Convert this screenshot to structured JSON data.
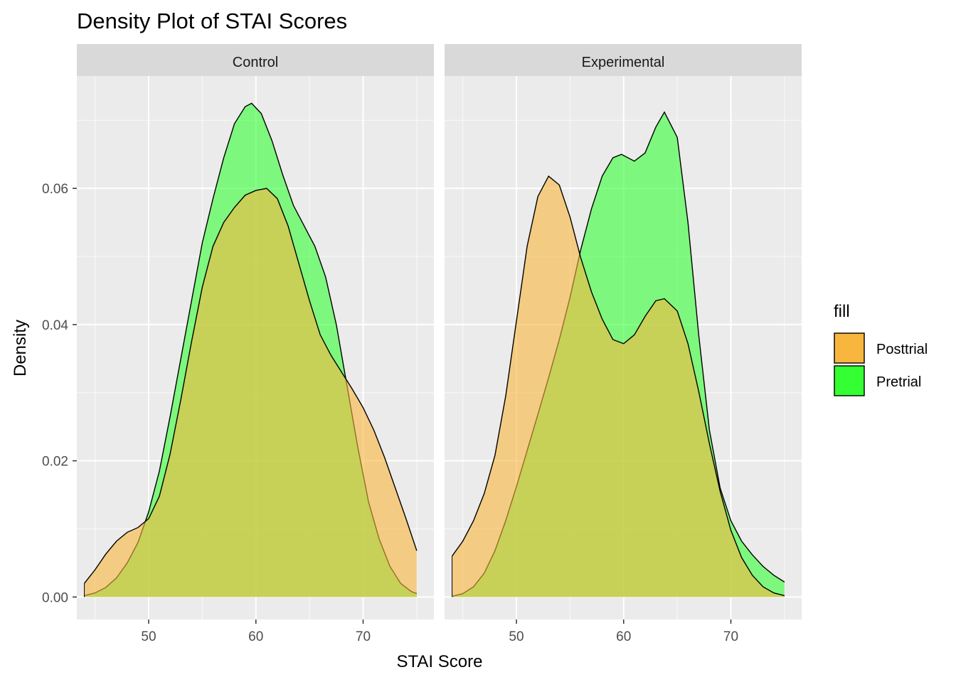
{
  "chart_data": {
    "type": "area",
    "subtype": "density",
    "title": "Density Plot of STAI Scores",
    "xlabel": "STAI Score",
    "ylabel": "Density",
    "xlim": [
      43.3,
      76.6
    ],
    "ylim": [
      -0.0033,
      0.0765
    ],
    "x_ticks": [
      50,
      60,
      70
    ],
    "x_minor_ticks": [
      45,
      55,
      65,
      75
    ],
    "y_ticks": [
      0.0,
      0.02,
      0.04,
      0.06
    ],
    "y_tick_labels": [
      "0.00",
      "0.02",
      "0.04",
      "0.06"
    ],
    "y_minor_ticks": [
      0.01,
      0.03,
      0.05,
      0.07
    ],
    "grid": true,
    "legend": {
      "title": "fill",
      "position": "right",
      "entries": [
        {
          "label": "Posttrial",
          "color": "#F8B63E"
        },
        {
          "label": "Pretrial",
          "color": "#33FF33"
        }
      ]
    },
    "panels": [
      {
        "name": "Control",
        "series": [
          {
            "name": "Pretrial",
            "color": "#33FF33",
            "points": [
              [
                44,
                0.0002
              ],
              [
                45,
                0.0006
              ],
              [
                46,
                0.0014
              ],
              [
                47,
                0.0028
              ],
              [
                48,
                0.005
              ],
              [
                49,
                0.008
              ],
              [
                50,
                0.0125
              ],
              [
                51,
                0.0185
              ],
              [
                52,
                0.0265
              ],
              [
                53,
                0.035
              ],
              [
                54,
                0.0435
              ],
              [
                55,
                0.052
              ],
              [
                56,
                0.0585
              ],
              [
                57,
                0.0645
              ],
              [
                58,
                0.0695
              ],
              [
                59,
                0.072
              ],
              [
                59.6,
                0.0725
              ],
              [
                60.5,
                0.071
              ],
              [
                61.5,
                0.067
              ],
              [
                62.5,
                0.062
              ],
              [
                63.5,
                0.0575
              ],
              [
                64.5,
                0.0545
              ],
              [
                65.5,
                0.0515
              ],
              [
                66.5,
                0.047
              ],
              [
                67.5,
                0.04
              ],
              [
                68.5,
                0.031
              ],
              [
                69.5,
                0.022
              ],
              [
                70.5,
                0.014
              ],
              [
                71.5,
                0.0085
              ],
              [
                72.5,
                0.0045
              ],
              [
                73.5,
                0.002
              ],
              [
                74.5,
                0.0008
              ],
              [
                75,
                0.0005
              ]
            ]
          },
          {
            "name": "Posttrial",
            "color": "#F8B63E",
            "points": [
              [
                44,
                0.002
              ],
              [
                45,
                0.004
              ],
              [
                46,
                0.0063
              ],
              [
                47,
                0.0082
              ],
              [
                48,
                0.0095
              ],
              [
                49,
                0.0102
              ],
              [
                50,
                0.0115
              ],
              [
                51,
                0.0148
              ],
              [
                52,
                0.021
              ],
              [
                53,
                0.029
              ],
              [
                54,
                0.0375
              ],
              [
                55,
                0.0455
              ],
              [
                56,
                0.0515
              ],
              [
                57,
                0.055
              ],
              [
                58,
                0.0572
              ],
              [
                59,
                0.059
              ],
              [
                60,
                0.0597
              ],
              [
                61,
                0.06
              ],
              [
                62,
                0.0585
              ],
              [
                63,
                0.0545
              ],
              [
                64,
                0.049
              ],
              [
                65,
                0.0435
              ],
              [
                66,
                0.0385
              ],
              [
                67,
                0.0355
              ],
              [
                68,
                0.033
              ],
              [
                69,
                0.0305
              ],
              [
                70,
                0.0278
              ],
              [
                71,
                0.0245
              ],
              [
                72,
                0.0205
              ],
              [
                73,
                0.016
              ],
              [
                74,
                0.0115
              ],
              [
                75,
                0.0068
              ]
            ]
          }
        ]
      },
      {
        "name": "Experimental",
        "series": [
          {
            "name": "Pretrial",
            "color": "#33FF33",
            "points": [
              [
                44,
                0.0001
              ],
              [
                45,
                0.0005
              ],
              [
                46,
                0.0015
              ],
              [
                47,
                0.0035
              ],
              [
                48,
                0.0068
              ],
              [
                49,
                0.0112
              ],
              [
                50,
                0.0162
              ],
              [
                51,
                0.0215
              ],
              [
                52,
                0.0268
              ],
              [
                53,
                0.0322
              ],
              [
                54,
                0.0378
              ],
              [
                55,
                0.044
              ],
              [
                56,
                0.051
              ],
              [
                57,
                0.057
              ],
              [
                58,
                0.0618
              ],
              [
                59,
                0.0645
              ],
              [
                59.8,
                0.065
              ],
              [
                61,
                0.064
              ],
              [
                62,
                0.0652
              ],
              [
                63,
                0.069
              ],
              [
                63.8,
                0.0712
              ],
              [
                65,
                0.0675
              ],
              [
                66,
                0.055
              ],
              [
                67,
                0.0385
              ],
              [
                68,
                0.0245
              ],
              [
                69,
                0.016
              ],
              [
                70,
                0.0112
              ],
              [
                71,
                0.0082
              ],
              [
                72,
                0.0062
              ],
              [
                73,
                0.0045
              ],
              [
                74,
                0.0032
              ],
              [
                75,
                0.0022
              ]
            ]
          },
          {
            "name": "Posttrial",
            "color": "#F8B63E",
            "points": [
              [
                44,
                0.006
              ],
              [
                45,
                0.0082
              ],
              [
                46,
                0.0112
              ],
              [
                47,
                0.0152
              ],
              [
                48,
                0.0208
              ],
              [
                49,
                0.0295
              ],
              [
                50,
                0.0405
              ],
              [
                51,
                0.0515
              ],
              [
                52,
                0.0588
              ],
              [
                53,
                0.0618
              ],
              [
                54,
                0.0605
              ],
              [
                55,
                0.0558
              ],
              [
                56,
                0.0498
              ],
              [
                57,
                0.0448
              ],
              [
                58,
                0.0408
              ],
              [
                59,
                0.0378
              ],
              [
                60,
                0.0372
              ],
              [
                61,
                0.0385
              ],
              [
                62,
                0.0412
              ],
              [
                63,
                0.0435
              ],
              [
                63.8,
                0.0438
              ],
              [
                65,
                0.042
              ],
              [
                66,
                0.0372
              ],
              [
                67,
                0.0302
              ],
              [
                68,
                0.0225
              ],
              [
                69,
                0.0155
              ],
              [
                70,
                0.0098
              ],
              [
                71,
                0.0058
              ],
              [
                72,
                0.0032
              ],
              [
                73,
                0.0015
              ],
              [
                74,
                0.0006
              ],
              [
                75,
                0.0002
              ]
            ]
          }
        ]
      }
    ]
  }
}
